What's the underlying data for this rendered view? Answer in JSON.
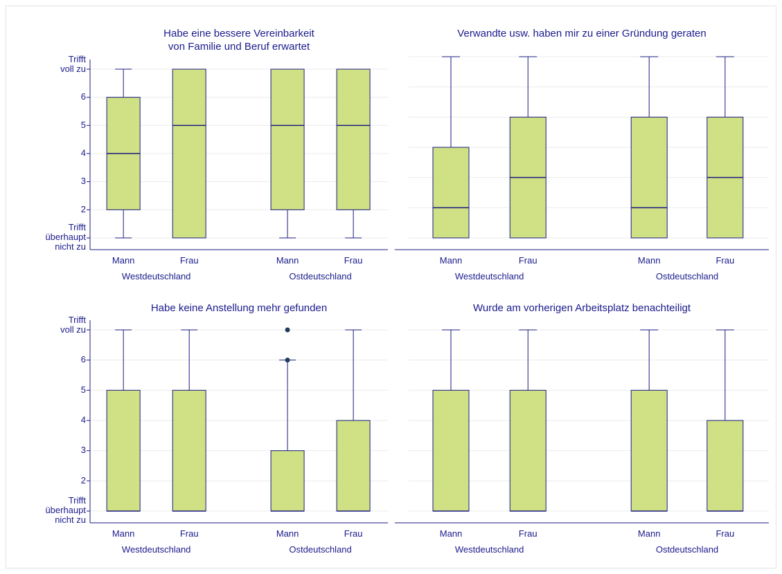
{
  "chart_data": [
    {
      "type": "box",
      "title": [
        "Habe eine bessere Vereinbarkeit",
        "von Familie und Beruf erwartet"
      ],
      "categories": [
        "Mann",
        "Frau",
        "Mann",
        "Frau"
      ],
      "groups": [
        "Westdeutschland",
        "Ostdeutschland"
      ],
      "boxes": [
        {
          "whislo": 1,
          "q1": 2,
          "med": 4,
          "q3": 6,
          "whishi": 7,
          "fliers": []
        },
        {
          "whislo": 1,
          "q1": 1,
          "med": 5,
          "q3": 7,
          "whishi": 7,
          "fliers": []
        },
        {
          "whislo": 1,
          "q1": 2,
          "med": 5,
          "q3": 7,
          "whishi": 7,
          "fliers": []
        },
        {
          "whislo": 1,
          "q1": 2,
          "med": 5,
          "q3": 7,
          "whishi": 7,
          "fliers": []
        }
      ],
      "ylim": [
        1,
        7
      ],
      "yticks": [
        {
          "value": 1,
          "label": "Trifft\nüberhaupt\nnicht zu"
        },
        2,
        3,
        4,
        5,
        6,
        {
          "value": 7,
          "label": "Trifft\nvoll zu"
        }
      ],
      "ytick_labels": true,
      "grid": true,
      "color": "#cfe085",
      "line_color": "#1a1a80"
    },
    {
      "type": "box",
      "title": [
        "Verwandte usw. haben mir zu einer Gründung geraten"
      ],
      "categories": [
        "Mann",
        "Frau",
        "Mann",
        "Frau"
      ],
      "groups": [
        "Westdeutschland",
        "Ostdeutschland"
      ],
      "boxes": [
        {
          "whislo": 1,
          "q1": 1,
          "med": 2,
          "q3": 4,
          "whishi": 7,
          "fliers": []
        },
        {
          "whislo": 1,
          "q1": 1,
          "med": 3,
          "q3": 5,
          "whishi": 7,
          "fliers": []
        },
        {
          "whislo": 1,
          "q1": 1,
          "med": 2,
          "q3": 5,
          "whishi": 7,
          "fliers": []
        },
        {
          "whislo": 1,
          "q1": 1,
          "med": 3,
          "q3": 5,
          "whishi": 7,
          "fliers": []
        }
      ],
      "ylim": [
        1,
        7
      ],
      "yticks": [
        1,
        2,
        3,
        4,
        5,
        6,
        7
      ],
      "ytick_labels": false,
      "grid": true,
      "color": "#cfe085",
      "line_color": "#1a1a80"
    },
    {
      "type": "box",
      "title": [
        "Habe keine Anstellung mehr gefunden"
      ],
      "categories": [
        "Mann",
        "Frau",
        "Mann",
        "Frau"
      ],
      "groups": [
        "Westdeutschland",
        "Ostdeutschland"
      ],
      "boxes": [
        {
          "whislo": 1,
          "q1": 1,
          "med": 1,
          "q3": 5,
          "whishi": 7,
          "fliers": []
        },
        {
          "whislo": 1,
          "q1": 1,
          "med": 1,
          "q3": 5,
          "whishi": 7,
          "fliers": []
        },
        {
          "whislo": 1,
          "q1": 1,
          "med": 1,
          "q3": 3,
          "whishi": 6,
          "fliers": [
            6,
            7
          ]
        },
        {
          "whislo": 1,
          "q1": 1,
          "med": 1,
          "q3": 4,
          "whishi": 7,
          "fliers": []
        }
      ],
      "ylim": [
        1,
        7
      ],
      "yticks": [
        {
          "value": 1,
          "label": "Trifft\nüberhaupt\nnicht zu"
        },
        2,
        3,
        4,
        5,
        6,
        {
          "value": 7,
          "label": "Trifft\nvoll zu"
        }
      ],
      "ytick_labels": true,
      "grid": true,
      "color": "#cfe085",
      "line_color": "#1a1a80",
      "flier_color": "#1f3b5c"
    },
    {
      "type": "box",
      "title": [
        "Wurde am vorherigen Arbeitsplatz benachteiligt"
      ],
      "categories": [
        "Mann",
        "Frau",
        "Mann",
        "Frau"
      ],
      "groups": [
        "Westdeutschland",
        "Ostdeutschland"
      ],
      "boxes": [
        {
          "whislo": 1,
          "q1": 1,
          "med": 1,
          "q3": 5,
          "whishi": 7,
          "fliers": []
        },
        {
          "whislo": 1,
          "q1": 1,
          "med": 1,
          "q3": 5,
          "whishi": 7,
          "fliers": []
        },
        {
          "whislo": 1,
          "q1": 1,
          "med": 1,
          "q3": 5,
          "whishi": 7,
          "fliers": []
        },
        {
          "whislo": 1,
          "q1": 1,
          "med": 1,
          "q3": 4,
          "whishi": 7,
          "fliers": []
        }
      ],
      "ylim": [
        1,
        7
      ],
      "yticks": [
        1,
        2,
        3,
        4,
        5,
        6,
        7
      ],
      "ytick_labels": false,
      "grid": true,
      "color": "#cfe085",
      "line_color": "#1a1a80"
    }
  ]
}
